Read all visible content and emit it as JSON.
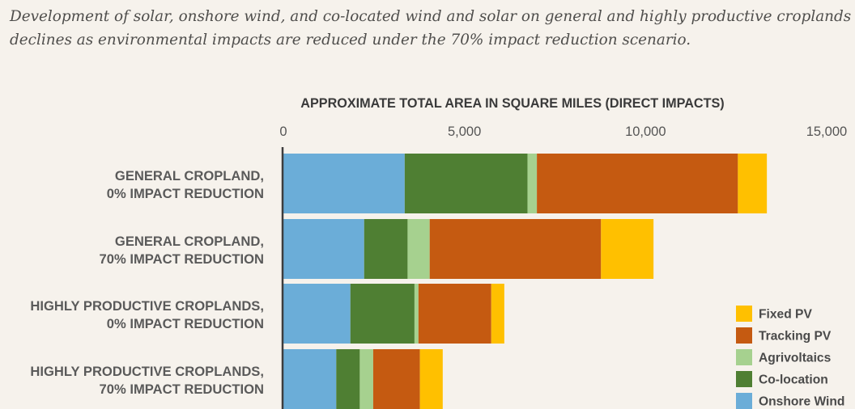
{
  "caption": "Development of solar, onshore wind, and co-located wind and solar on general and highly productive croplands declines as environmental impacts are reduced under the 70% impact reduction scenario.",
  "chart_data": {
    "type": "bar",
    "orientation": "horizontal",
    "stacked": true,
    "title": "APPROXIMATE TOTAL AREA IN SQUARE MILES (DIRECT IMPACTS)",
    "xlim": [
      0,
      15000
    ],
    "xticks": [
      0,
      5000,
      10000,
      15000
    ],
    "xtick_labels": [
      "0",
      "5,000",
      "10,000",
      "15,000"
    ],
    "grid": false,
    "legend_position": "bottom-right",
    "categories": [
      [
        "GENERAL CROPLAND,",
        "0%  IMPACT REDUCTION"
      ],
      [
        "GENERAL CROPLAND,",
        "70%  IMPACT REDUCTION"
      ],
      [
        "HIGHLY PRODUCTIVE CROPLANDS,",
        "0%  IMPACT REDUCTION"
      ],
      [
        "HIGHLY PRODUCTIVE CROPLANDS,",
        "70%  IMPACT REDUCTION"
      ]
    ],
    "series": [
      {
        "name": "Onshore Wind",
        "color": "#6badd8",
        "values": [
          3350,
          2230,
          1850,
          1460
        ]
      },
      {
        "name": "Co-location",
        "color": "#4f7f33",
        "values": [
          3390,
          1200,
          1770,
          650
        ]
      },
      {
        "name": "Agrivoltaics",
        "color": "#a6d18f",
        "values": [
          260,
          610,
          110,
          370
        ]
      },
      {
        "name": "Tracking PV",
        "color": "#c55a11",
        "values": [
          5550,
          4730,
          2010,
          1290
        ]
      },
      {
        "name": "Fixed PV",
        "color": "#ffc000",
        "values": [
          800,
          1450,
          360,
          630
        ]
      }
    ],
    "legend_order": [
      "Fixed PV",
      "Tracking PV",
      "Agrivoltaics",
      "Co-location",
      "Onshore Wind"
    ]
  }
}
